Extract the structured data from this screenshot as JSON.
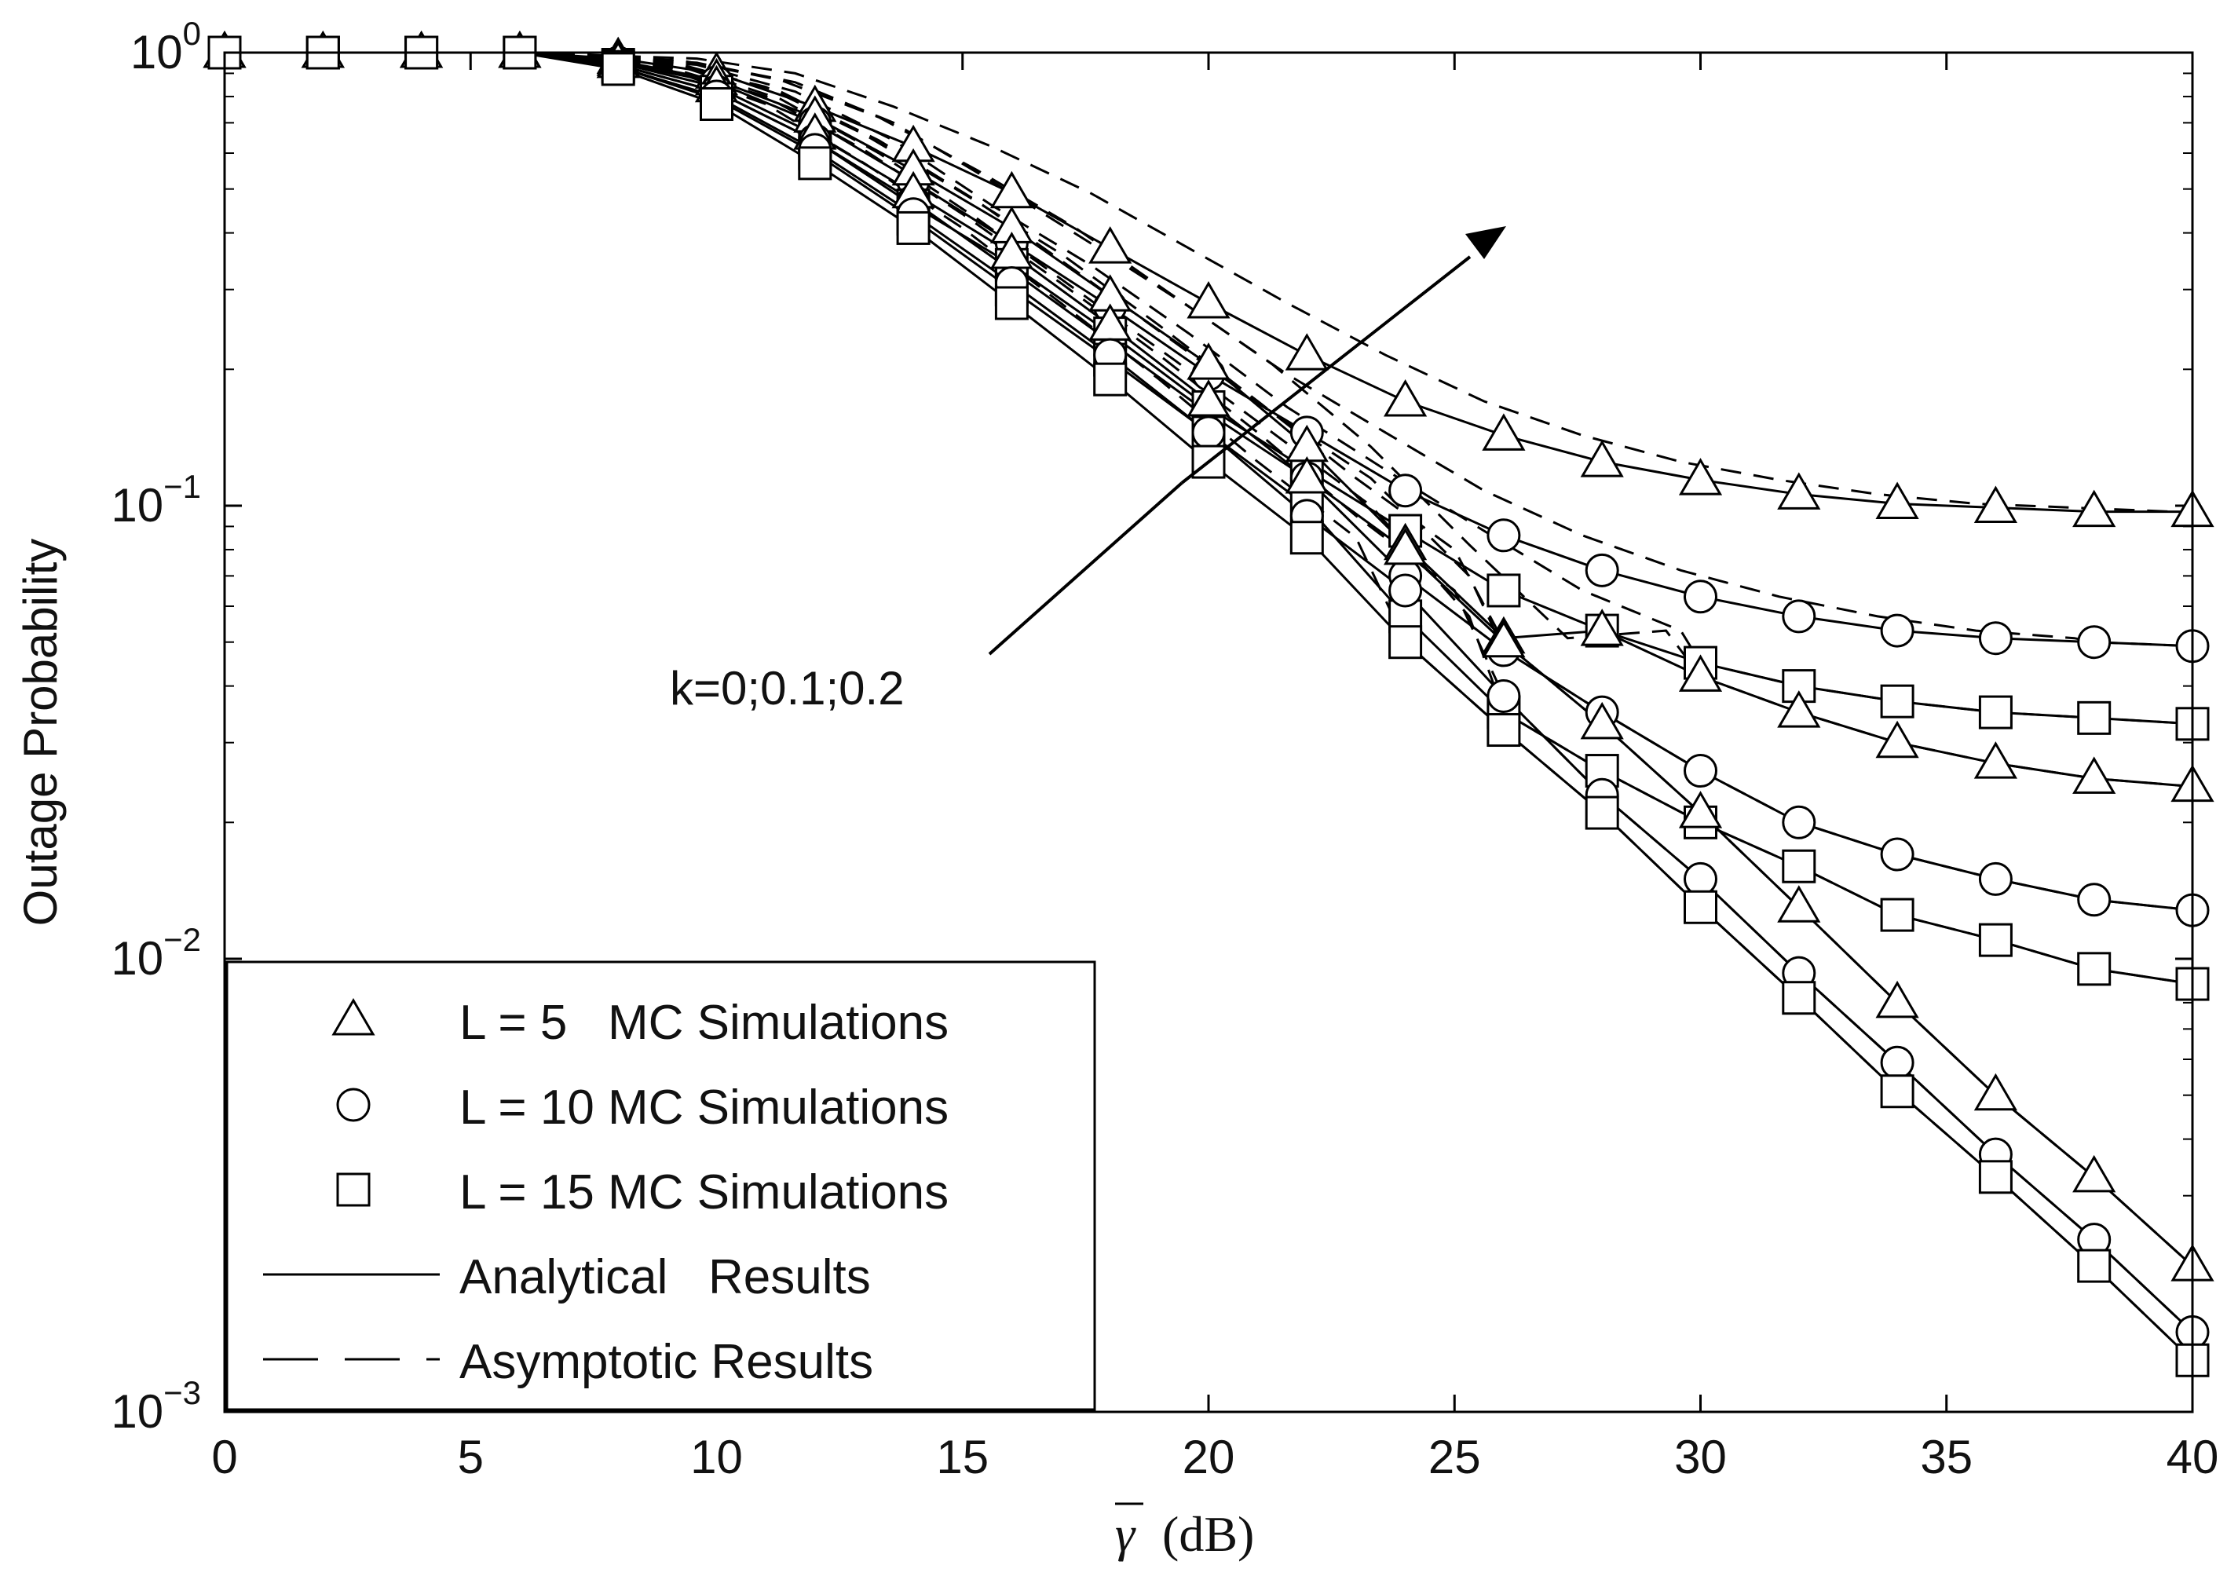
{
  "chart_data": {
    "type": "line",
    "yscale": "log",
    "title": "",
    "xlabel": "γ̅ (dB)",
    "xlabel_symbol": "γ",
    "xlabel_unit": "(dB)",
    "ylabel": "Outage Probability",
    "xlim": [
      0,
      40
    ],
    "ylim": [
      0.001,
      1
    ],
    "xticks": [
      0,
      5,
      10,
      15,
      20,
      25,
      30,
      35,
      40
    ],
    "xtick_labels": [
      "0",
      "5",
      "10",
      "15",
      "20",
      "25",
      "30",
      "35",
      "40"
    ],
    "yticks": [
      1,
      0.1,
      0.01,
      0.001
    ],
    "ytick_labels": [
      {
        "base": "10",
        "exp": "0"
      },
      {
        "base": "10",
        "exp": "−1"
      },
      {
        "base": "10",
        "exp": "−2"
      },
      {
        "base": "10",
        "exp": "−3"
      }
    ],
    "annotation": {
      "text": "k=0;0.1;0.2",
      "arrow_direction": "increasing k"
    },
    "legend": {
      "position": "bottom-left",
      "entries": [
        {
          "marker": "triangle",
          "label": "L = 5   MC Simulations"
        },
        {
          "marker": "circle",
          "label": "L = 10 MC Simulations"
        },
        {
          "marker": "square",
          "label": "L = 15 MC Simulations"
        },
        {
          "line": "solid",
          "label": "Analytical   Results"
        },
        {
          "line": "dashed",
          "label": "Asymptotic Results"
        }
      ]
    },
    "x": [
      0,
      2,
      4,
      6,
      8,
      10,
      12,
      14,
      16,
      18,
      20,
      22,
      24,
      26,
      28,
      30,
      32,
      34,
      36,
      38,
      40
    ],
    "series": [
      {
        "name": "L=5, k=0.2",
        "marker": "triangle",
        "k": 0.2,
        "L": 5,
        "values": [
          1,
          1,
          1,
          1,
          0.97,
          0.9,
          0.76,
          0.62,
          0.49,
          0.37,
          0.28,
          0.215,
          0.17,
          0.143,
          0.125,
          0.114,
          0.106,
          0.101,
          0.099,
          0.097,
          0.097
        ]
      },
      {
        "name": "L=10, k=0.2",
        "marker": "circle",
        "k": 0.2,
        "L": 10,
        "values": [
          1,
          1,
          1,
          1,
          0.95,
          0.86,
          0.7,
          0.52,
          0.38,
          0.275,
          0.195,
          0.145,
          0.108,
          0.086,
          0.072,
          0.063,
          0.057,
          0.053,
          0.051,
          0.05,
          0.049
        ]
      },
      {
        "name": "L=15, k=0.2",
        "marker": "square",
        "k": 0.2,
        "L": 15,
        "values": [
          1,
          1,
          1,
          1,
          0.94,
          0.82,
          0.64,
          0.46,
          0.34,
          0.24,
          0.165,
          0.12,
          0.088,
          0.065,
          0.053,
          0.045,
          0.04,
          0.037,
          0.035,
          0.034,
          0.033
        ]
      },
      {
        "name": "L=5, k=0.1",
        "marker": "triangle",
        "k": 0.1,
        "L": 5,
        "values": [
          1,
          1,
          1,
          1,
          0.96,
          0.87,
          0.72,
          0.55,
          0.41,
          0.29,
          0.205,
          0.135,
          0.082,
          0.051,
          0.053,
          0.042,
          0.035,
          0.03,
          0.027,
          0.025,
          0.024
        ]
      },
      {
        "name": "L=10, k=0.1",
        "marker": "circle",
        "k": 0.1,
        "L": 10,
        "values": [
          1,
          1,
          1,
          1,
          0.94,
          0.82,
          0.64,
          0.47,
          0.33,
          0.23,
          0.16,
          0.115,
          0.07,
          0.048,
          0.035,
          0.026,
          0.02,
          0.017,
          0.015,
          0.0135,
          0.0128
        ]
      },
      {
        "name": "L=15, k=0.1",
        "marker": "square",
        "k": 0.1,
        "L": 15,
        "values": [
          1,
          1,
          1,
          1,
          0.93,
          0.79,
          0.6,
          0.43,
          0.3,
          0.21,
          0.145,
          0.1,
          0.057,
          0.035,
          0.026,
          0.02,
          0.016,
          0.0125,
          0.011,
          0.0095,
          0.0088
        ]
      },
      {
        "name": "L=5, k=0",
        "marker": "triangle",
        "k": 0,
        "L": 5,
        "values": [
          1,
          1,
          1,
          1,
          0.95,
          0.84,
          0.66,
          0.49,
          0.36,
          0.25,
          0.17,
          0.115,
          0.08,
          0.05,
          0.033,
          0.021,
          0.013,
          0.008,
          0.005,
          0.0033,
          0.0021
        ]
      },
      {
        "name": "L=10, k=0",
        "marker": "circle",
        "k": 0,
        "L": 10,
        "values": [
          1,
          1,
          1,
          1,
          0.93,
          0.8,
          0.61,
          0.44,
          0.31,
          0.215,
          0.145,
          0.095,
          0.065,
          0.038,
          0.023,
          0.015,
          0.0093,
          0.0059,
          0.0037,
          0.0024,
          0.0015
        ]
      },
      {
        "name": "L=15, k=0",
        "marker": "square",
        "k": 0,
        "L": 15,
        "values": [
          1,
          1,
          1,
          1,
          0.92,
          0.77,
          0.57,
          0.41,
          0.28,
          0.19,
          0.125,
          0.085,
          0.05,
          0.032,
          0.021,
          0.013,
          0.0082,
          0.0051,
          0.0033,
          0.0021,
          0.0013
        ]
      }
    ]
  }
}
